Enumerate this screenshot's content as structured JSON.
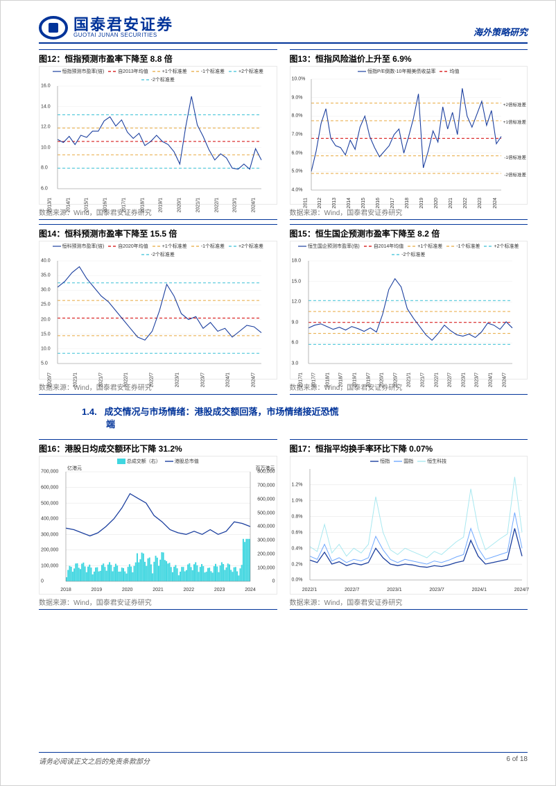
{
  "header": {
    "logo_cn": "国泰君安证券",
    "logo_en": "GUOTAI JUNAN SECURITIES",
    "right": "海外策略研究"
  },
  "source_label": "数据来源：Wind，国泰君安证券研究",
  "section_heading_num": "1.4.",
  "section_heading_title": "成交情况与市场情绪：港股成交额回落，市场情绪接近恐慌",
  "section_heading_tail": "端",
  "figures": {
    "f12": {
      "title": "图12：恒指预测市盈率下降至 8.8 倍",
      "type": "line",
      "colors": {
        "main": "#1a3e9e",
        "mean": "#d40000",
        "p1": "#e8a73c",
        "m1": "#e8a73c",
        "p2": "#39c0d6",
        "m2": "#39c0d6"
      },
      "line_width": 1.1,
      "dash_aux": "4,3",
      "ylim": [
        6,
        16
      ],
      "ytick_step": 2,
      "x_labels": [
        "2013/1",
        "2014/1",
        "2015/1",
        "2016/1",
        "2017/1",
        "2018/1",
        "2019/1",
        "2020/1",
        "2021/1",
        "2022/1",
        "2023/1",
        "2024/1"
      ],
      "mean": 10.6,
      "p1": 11.9,
      "m1": 9.3,
      "p2": 13.2,
      "m2": 8.0,
      "legend": [
        "恒指预测市盈率(倍)",
        "自2013年均值",
        "+1个标准差",
        "-1个标准差",
        "+2个标准差",
        "-2个标准差"
      ],
      "series": [
        10.8,
        10.5,
        11.1,
        10.3,
        11.2,
        11.0,
        11.6,
        11.6,
        12.6,
        13.0,
        12.1,
        12.7,
        11.5,
        10.9,
        11.4,
        10.2,
        10.6,
        11.2,
        10.6,
        10.3,
        9.6,
        8.4,
        12.0,
        15.0,
        12.2,
        11.1,
        9.8,
        8.8,
        9.4,
        9.0,
        8.0,
        7.9,
        8.4,
        7.9,
        9.9,
        8.8
      ]
    },
    "f13": {
      "title": "图13：恒指风险溢价上升至 6.9%",
      "type": "line",
      "colors": {
        "main": "#1a3e9e",
        "mean": "#d40000",
        "band": "#e8a73c"
      },
      "line_width": 1.1,
      "dash_aux": "4,3",
      "ylim": [
        4.0,
        10.0
      ],
      "yticks": [
        "4.0%",
        "5.0%",
        "6.0%",
        "7.0%",
        "8.0%",
        "9.0%",
        "10.0%"
      ],
      "x_labels": [
        "2011",
        "2012",
        "2013",
        "2014",
        "2015",
        "2016",
        "2017",
        "2018",
        "2019",
        "2020",
        "2021",
        "2022",
        "2023",
        "2024"
      ],
      "mean": 6.8,
      "p1": 7.75,
      "m1": 5.85,
      "p2": 8.7,
      "m2": 4.9,
      "legend": [
        "恒指P/E倒数-10年期美债收益率",
        "均值"
      ],
      "band_labels": [
        "+2倍标准差",
        "+1倍标准差",
        "-1倍标准差",
        "-2倍标准差"
      ],
      "series": [
        5.0,
        6.1,
        7.6,
        8.4,
        6.8,
        6.4,
        6.3,
        5.9,
        6.7,
        6.2,
        7.4,
        8.0,
        6.9,
        6.3,
        5.8,
        6.1,
        6.4,
        7.0,
        7.3,
        6.0,
        6.9,
        7.9,
        9.2,
        5.2,
        6.1,
        7.2,
        6.6,
        8.5,
        7.3,
        8.2,
        7.0,
        9.5,
        8.0,
        7.4,
        8.1,
        8.8,
        7.5,
        8.3,
        6.5,
        6.9
      ]
    },
    "f14": {
      "title": "图14：恒科预测市盈率下降至 15.5 倍",
      "type": "line",
      "colors": {
        "main": "#1a3e9e",
        "mean": "#d40000",
        "p1": "#e8a73c",
        "m1": "#e8a73c",
        "p2": "#39c0d6",
        "m2": "#39c0d6"
      },
      "line_width": 1.1,
      "dash_aux": "4,3",
      "ylim": [
        5,
        40
      ],
      "ytick_step": 5,
      "x_labels": [
        "2020/7",
        "2021/1",
        "2021/7",
        "2022/1",
        "2022/7",
        "2023/1",
        "2023/7",
        "2024/1",
        "2024/7"
      ],
      "mean": 20.5,
      "p1": 26.5,
      "m1": 14.5,
      "p2": 32.5,
      "m2": 8.5,
      "legend": [
        "恒科预测市盈率(倍)",
        "自2020年均值",
        "+1个标准差",
        "-1个标准差",
        "+2个标准差",
        "-2个标准差"
      ],
      "series": [
        31,
        33,
        36,
        38,
        34,
        31,
        28,
        26,
        23,
        20,
        17,
        14,
        13,
        16,
        23,
        32,
        28,
        22,
        20,
        21,
        17,
        19,
        16,
        17,
        14,
        16,
        18,
        17.5,
        15.5
      ]
    },
    "f15": {
      "title": "图15：恒生国企预测市盈率下降至 8.2 倍",
      "type": "line",
      "colors": {
        "main": "#1a3e9e",
        "mean": "#d40000",
        "p1": "#e8a73c",
        "m1": "#e8a73c",
        "p2": "#39c0d6",
        "m2": "#39c0d6"
      },
      "line_width": 1.1,
      "dash_aux": "4,3",
      "ylim": [
        3,
        18
      ],
      "ytick_step": 3,
      "x_labels": [
        "2017/1",
        "2017/7",
        "2018/1",
        "2018/7",
        "2019/1",
        "2019/7",
        "2020/1",
        "2020/7",
        "2021/1",
        "2021/7",
        "2022/1",
        "2022/7",
        "2023/1",
        "2023/7",
        "2024/1",
        "2024/7"
      ],
      "mean": 9.0,
      "p1": 10.6,
      "m1": 7.4,
      "p2": 12.2,
      "m2": 5.8,
      "legend": [
        "恒生国企预测市盈率(倍)",
        "自2014年均值",
        "+1个标准差",
        "-1个标准差",
        "+2个标准差",
        "-2个标准差"
      ],
      "series": [
        8.2,
        8.6,
        8.8,
        8.4,
        8.0,
        8.3,
        7.9,
        8.4,
        8.1,
        7.7,
        8.2,
        7.6,
        10.2,
        13.8,
        15.4,
        14.2,
        11.0,
        9.6,
        8.4,
        7.2,
        6.4,
        7.4,
        8.6,
        7.8,
        7.2,
        7.0,
        7.3,
        6.8,
        7.6,
        8.9,
        8.6,
        8.0,
        9.1,
        8.2
      ]
    },
    "f16": {
      "title": "图16：港股日均成交额环比下降 31.2%",
      "type": "combo",
      "colors": {
        "bars": "#3fd6e0",
        "line": "#1a3e9e",
        "grid": "#e0e0e0"
      },
      "yl_lim": [
        0,
        700000
      ],
      "yl_step": 100000,
      "yl_label": "亿港元",
      "yr_lim": [
        0,
        800000
      ],
      "yr_step": 100000,
      "yr_label": "百万港元",
      "x_labels": [
        "2018",
        "2019",
        "2020",
        "2021",
        "2022",
        "2023",
        "2024"
      ],
      "legend": [
        "总成交额（右）",
        "港股总市值"
      ],
      "line_series": [
        340000,
        330000,
        310000,
        290000,
        310000,
        350000,
        400000,
        470000,
        560000,
        530000,
        500000,
        420000,
        380000,
        330000,
        310000,
        300000,
        320000,
        300000,
        330000,
        300000,
        320000,
        380000,
        370000,
        350000
      ],
      "bar_max": 310000,
      "bar_density": 120
    },
    "f17": {
      "title": "图17：恒指平均换手率环比下降 0.07%",
      "type": "multiline",
      "colors": {
        "s1": "#1a3e9e",
        "s2": "#6fa8ff",
        "s3": "#a8e8f0",
        "grid": "#e0e0e0"
      },
      "line_width": 1.0,
      "ylim": [
        0,
        1.4
      ],
      "yticks": [
        "0.0%",
        "0.2%",
        "0.4%",
        "0.6%",
        "0.8%",
        "1.0%",
        "1.2%"
      ],
      "x_labels": [
        "2022/1",
        "2022/7",
        "2023/1",
        "2023/7",
        "2024/1",
        "2024/7"
      ],
      "legend": [
        "恒指",
        "国指",
        "恒生科技"
      ],
      "s1": [
        0.25,
        0.22,
        0.35,
        0.2,
        0.23,
        0.18,
        0.21,
        0.19,
        0.22,
        0.4,
        0.28,
        0.2,
        0.18,
        0.2,
        0.19,
        0.17,
        0.16,
        0.18,
        0.17,
        0.19,
        0.22,
        0.24,
        0.5,
        0.3,
        0.2,
        0.22,
        0.24,
        0.26,
        0.65,
        0.3
      ],
      "s2": [
        0.3,
        0.26,
        0.45,
        0.24,
        0.28,
        0.22,
        0.26,
        0.24,
        0.28,
        0.55,
        0.38,
        0.26,
        0.22,
        0.26,
        0.24,
        0.22,
        0.2,
        0.24,
        0.22,
        0.25,
        0.29,
        0.32,
        0.65,
        0.4,
        0.26,
        0.29,
        0.32,
        0.35,
        0.85,
        0.4
      ],
      "s3": [
        0.42,
        0.36,
        0.7,
        0.34,
        0.45,
        0.3,
        0.4,
        0.34,
        0.45,
        1.05,
        0.6,
        0.38,
        0.32,
        0.4,
        0.36,
        0.32,
        0.28,
        0.36,
        0.32,
        0.4,
        0.48,
        0.54,
        1.15,
        0.65,
        0.38,
        0.45,
        0.52,
        0.58,
        1.3,
        0.6
      ]
    }
  },
  "footer": {
    "left": "请务必阅读正文之后的免责条款部分",
    "right": "6 of 18"
  }
}
